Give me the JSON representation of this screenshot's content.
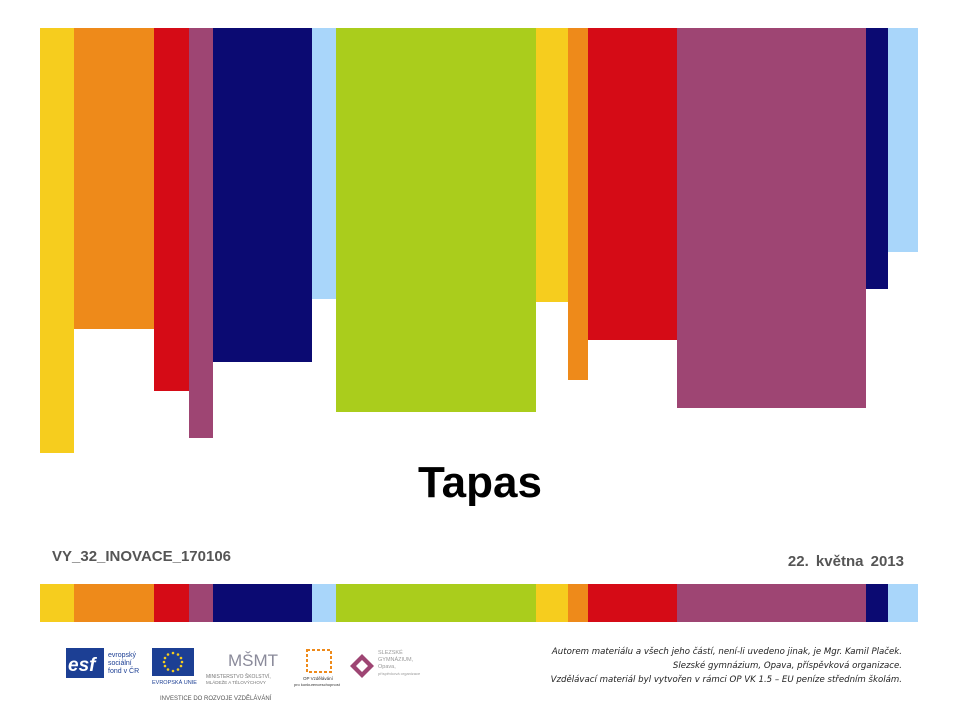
{
  "colors": {
    "yellow": "#F6CD1E",
    "orange": "#EE8A1A",
    "red": "#D50B16",
    "plum": "#9E4573",
    "navy": "#0B0A72",
    "lightblue": "#A9D6FA",
    "lime": "#AACD1C"
  },
  "slide": {
    "title": "Tapas",
    "code": "VY_32_INOVACE_170106",
    "date": "22. května 2013"
  },
  "footer": {
    "credit_lines": [
      "Autorem materiálu a všech jeho částí, není-li uvedeno jinak, je Mgr. Kamil Plaček.",
      "Slezské gymnázium, Opava, příspěvková organizace.",
      "Vzdělávací materiál byl vytvořen v rámci OP VK 1.5 – EU peníze středním školám."
    ],
    "logos": {
      "esf_main": "esf",
      "esf_text": [
        "evropský",
        "sociální",
        "fond v ČR"
      ],
      "eu_label": "EVROPSKÁ UNIE",
      "msmt_mark": "MŠMT",
      "msmt_text": [
        "MINISTERSTVO ŠKOLSTVÍ,",
        "MLÁDEŽE A TĚLOVÝCHOVY"
      ],
      "opvk_label": "OP Vzdělávání",
      "opvk_sub": "pro konkurenceschopnost",
      "school_text": [
        "SLEZSKÉ",
        "GYMNÁZIUM,",
        "Opava,",
        "příspěvková organizace"
      ],
      "slogan": "INVESTICE DO ROZVOJE VZDĚLÁVÁNÍ"
    }
  }
}
